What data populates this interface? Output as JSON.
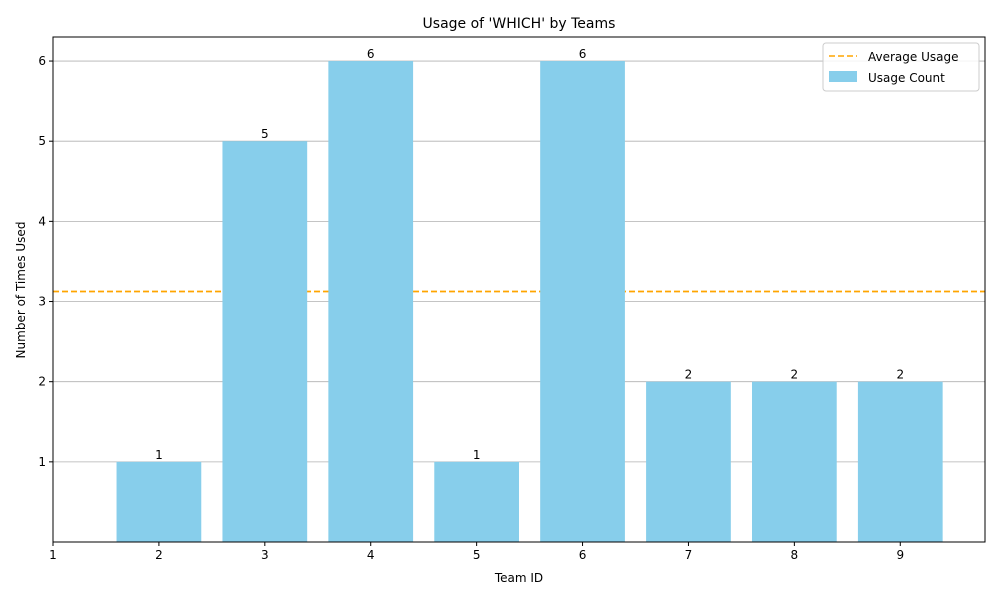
{
  "chart_data": {
    "type": "bar",
    "title": "Usage of 'WHICH' by Teams",
    "xlabel": "Team ID",
    "ylabel": "Number of Times Used",
    "x_ticks": [
      "1",
      "2",
      "3",
      "4",
      "5",
      "6",
      "7",
      "8",
      "9"
    ],
    "y_ticks": [
      "1",
      "2",
      "3",
      "4",
      "5",
      "6"
    ],
    "categories": [
      "2",
      "3",
      "4",
      "5",
      "6",
      "7",
      "8",
      "9"
    ],
    "series": [
      {
        "name": "Usage Count",
        "values": [
          1,
          5,
          6,
          1,
          6,
          2,
          2,
          2
        ],
        "color": "#87ceeb"
      }
    ],
    "average": {
      "name": "Average Usage",
      "value": 3.125,
      "color": "#ffa500",
      "style": "dashed"
    },
    "xlim": [
      1,
      9.8
    ],
    "ylim": [
      0,
      6.3
    ],
    "grid": "y",
    "legend": "top-right"
  }
}
